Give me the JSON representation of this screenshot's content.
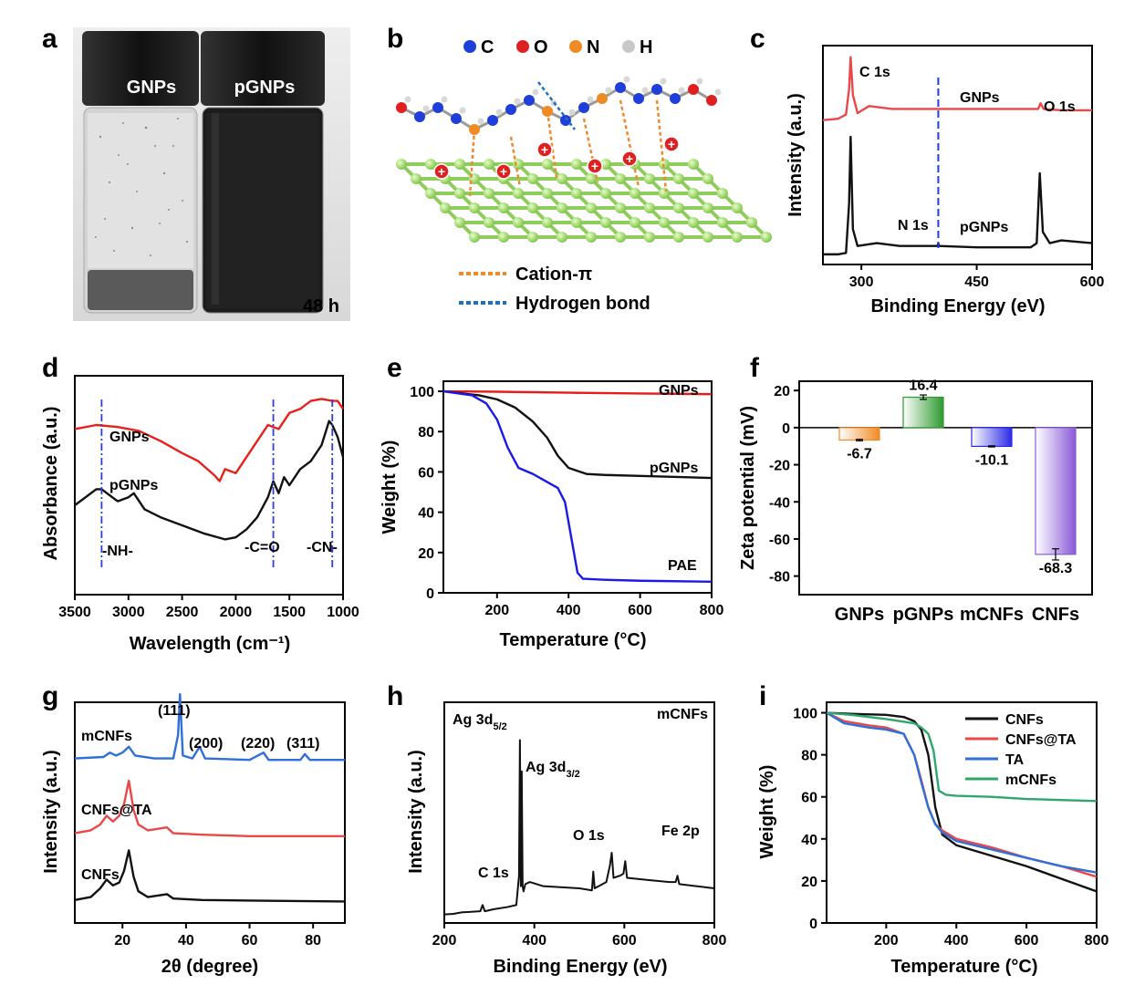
{
  "panels": {
    "a": {
      "label": "a",
      "vials": [
        "GNPs",
        "pGNPs"
      ],
      "time": "48 h"
    },
    "b": {
      "label": "b",
      "atoms": [
        {
          "symbol": "C",
          "color": "#1f3fd8"
        },
        {
          "symbol": "O",
          "color": "#e02020"
        },
        {
          "symbol": "N",
          "color": "#f08a24"
        },
        {
          "symbol": "H",
          "color": "#c8c8c8"
        }
      ],
      "legend": [
        {
          "label": "Cation-π",
          "color": "#ee8a2c"
        },
        {
          "label": "Hydrogen bond",
          "color": "#1f6fbf"
        }
      ]
    }
  },
  "chart_data": [
    {
      "panel": "c",
      "type": "line",
      "xlabel": "Binding Energy (eV)",
      "ylabel": "Intensity (a.u.)",
      "xlim": [
        250,
        600
      ],
      "xticks": [
        "300",
        "450",
        "600"
      ],
      "series": [
        {
          "name": "GNPs",
          "color": "#e8484a",
          "x": [
            250,
            270,
            280,
            284,
            286,
            289,
            295,
            310,
            340,
            400,
            530,
            533,
            537,
            560,
            600
          ],
          "y": [
            100,
            101,
            104,
            122,
            145,
            118,
            105,
            110,
            108,
            108,
            108,
            112,
            108,
            107,
            107
          ]
        },
        {
          "name": "pGNPs",
          "color": "#111111",
          "x": [
            250,
            270,
            280,
            284,
            286,
            289,
            295,
            320,
            350,
            399,
            400,
            401,
            450,
            520,
            528,
            532,
            536,
            545,
            560,
            600
          ],
          "y": [
            4,
            4,
            5,
            40,
            88,
            22,
            10,
            12,
            10,
            10,
            12,
            10,
            9,
            9,
            12,
            62,
            20,
            12,
            14,
            12
          ]
        }
      ],
      "annotations": [
        "C 1s",
        "O 1s",
        "N 1s"
      ],
      "vline_x": 400
    },
    {
      "panel": "d",
      "type": "line",
      "xlabel": "Wavelength (cm⁻¹)",
      "ylabel": "Absorbance (a.u.)",
      "xlim": [
        3500,
        1000
      ],
      "xticks": [
        "3500",
        "3000",
        "2500",
        "2000",
        "1500",
        "1000"
      ],
      "series": [
        {
          "name": "GNPs",
          "color": "#e8201a",
          "x": [
            3500,
            3300,
            3100,
            2900,
            2700,
            2500,
            2350,
            2200,
            2150,
            2100,
            2000,
            1900,
            1800,
            1700,
            1600,
            1500,
            1400,
            1300,
            1200,
            1100,
            1050,
            1000
          ],
          "y": [
            78,
            80,
            79,
            77,
            72,
            66,
            62,
            55,
            52,
            58,
            56,
            64,
            72,
            80,
            78,
            86,
            88,
            92,
            93,
            92,
            92,
            88
          ]
        },
        {
          "name": "pGNPs",
          "color": "#111111",
          "x": [
            3500,
            3300,
            3250,
            3100,
            3000,
            2950,
            2850,
            2700,
            2500,
            2300,
            2100,
            2000,
            1900,
            1800,
            1700,
            1650,
            1600,
            1550,
            1500,
            1400,
            1300,
            1200,
            1130,
            1100,
            1050,
            1000
          ],
          "y": [
            40,
            48,
            48,
            42,
            44,
            46,
            38,
            34,
            30,
            26,
            23,
            24,
            28,
            34,
            44,
            52,
            46,
            54,
            50,
            58,
            62,
            70,
            82,
            80,
            74,
            64
          ]
        }
      ],
      "annotations": [
        "-NH-",
        "-C=O",
        "-CN-"
      ],
      "vlines_x": [
        3250,
        1650,
        1100
      ]
    },
    {
      "panel": "e",
      "type": "line",
      "xlabel": "Temperature (°C)",
      "ylabel": "Weight (%)",
      "xlim": [
        50,
        800
      ],
      "ylim": [
        0,
        105
      ],
      "xticks": [
        "200",
        "400",
        "600",
        "800"
      ],
      "yticks": [
        "0",
        "20",
        "40",
        "60",
        "80",
        "100"
      ],
      "series": [
        {
          "name": "GNPs",
          "color": "#e81a1a",
          "x": [
            50,
            200,
            400,
            600,
            800
          ],
          "y": [
            100,
            99.8,
            99.3,
            98.9,
            98.6
          ]
        },
        {
          "name": "pGNPs",
          "color": "#111111",
          "x": [
            50,
            150,
            200,
            250,
            300,
            340,
            370,
            400,
            450,
            500,
            600,
            700,
            800
          ],
          "y": [
            100,
            98,
            96,
            92,
            85,
            77,
            68,
            62,
            59,
            58.5,
            58,
            57.5,
            57
          ]
        },
        {
          "name": "PAE",
          "color": "#1a1ae8",
          "x": [
            50,
            130,
            170,
            200,
            230,
            260,
            300,
            340,
            370,
            390,
            410,
            425,
            440,
            500,
            600,
            800
          ],
          "y": [
            100,
            98,
            94,
            86,
            72,
            62,
            59,
            55,
            52,
            45,
            25,
            10,
            7,
            6.5,
            6,
            5.5
          ]
        }
      ]
    },
    {
      "panel": "f",
      "type": "bar",
      "ylabel": "Zeta potential (mV)",
      "ylim": [
        -90,
        25
      ],
      "yticks": [
        "20",
        "0",
        "-20",
        "-40",
        "-60",
        "-80"
      ],
      "categories": [
        "GNPs",
        "pGNPs",
        "mCNFs",
        "CNFs"
      ],
      "values": [
        -6.7,
        16.4,
        -10.1,
        -68.3
      ],
      "value_labels": [
        "-6.7",
        "16.4",
        "-10.1",
        "-68.3"
      ],
      "errors": [
        0.4,
        1.2,
        0.3,
        3.0
      ],
      "colors": [
        "#f08a24",
        "#2e9a2e",
        "#2a2ae6",
        "#8a5ad8"
      ]
    },
    {
      "panel": "g",
      "type": "line",
      "xlabel": "2θ (degree)",
      "ylabel": "Intensity (a.u.)",
      "xlim": [
        5,
        90
      ],
      "xticks": [
        "20",
        "40",
        "60",
        "80"
      ],
      "series": [
        {
          "name": "mCNFs",
          "color": "#2e6fd8",
          "x": [
            5,
            14,
            16,
            18,
            20,
            22,
            24,
            30,
            36,
            37.5,
            38.1,
            39,
            42,
            44.3,
            46,
            60,
            64.4,
            66,
            76,
            77.4,
            79,
            90
          ],
          "y": [
            2,
            2.5,
            4,
            3,
            4,
            6,
            3,
            2,
            2,
            10,
            24,
            3,
            2,
            6,
            2,
            1.5,
            4,
            1.5,
            1.5,
            3.5,
            1.5,
            1.5
          ]
        },
        {
          "name": "CNFs@TA",
          "color": "#e84848",
          "x": [
            5,
            10,
            13,
            15,
            17,
            19,
            20.5,
            22,
            23.5,
            25,
            28,
            34,
            36,
            45,
            60,
            90
          ],
          "y": [
            2,
            3,
            5,
            8,
            6,
            8,
            12,
            20,
            10,
            5,
            3,
            4,
            2,
            1.5,
            1,
            1
          ]
        },
        {
          "name": "CNFs",
          "color": "#111111",
          "x": [
            5,
            10,
            13,
            15,
            17,
            19,
            20.5,
            22,
            23.5,
            25,
            28,
            34,
            36,
            45,
            60,
            90
          ],
          "y": [
            1,
            2,
            5,
            8,
            6,
            7,
            11,
            18,
            9,
            4,
            2,
            3,
            1.5,
            1,
            0.8,
            0.5
          ]
        }
      ],
      "annotations": [
        "(111)",
        "(200)",
        "(220)",
        "(311)"
      ]
    },
    {
      "panel": "h",
      "type": "line",
      "xlabel": "Binding Energy (eV)",
      "ylabel": "Intensity (a.u.)",
      "xlim": [
        200,
        800
      ],
      "xticks": [
        "200",
        "400",
        "600",
        "800"
      ],
      "series": [
        {
          "name": "mCNFs",
          "color": "#111111",
          "x": [
            200,
            220,
            240,
            260,
            280,
            285,
            290,
            310,
            340,
            360,
            366,
            368,
            370,
            372,
            374,
            376,
            380,
            390,
            420,
            500,
            528,
            531,
            534,
            560,
            568,
            572,
            576,
            590,
            598,
            602,
            606,
            650,
            700,
            714,
            718,
            722,
            760,
            800
          ],
          "y": [
            3,
            3.5,
            5,
            5.5,
            6,
            12,
            6,
            8,
            10,
            12,
            40,
            170,
            30,
            140,
            30,
            25,
            32,
            34,
            30,
            28,
            26,
            44,
            28,
            34,
            50,
            62,
            38,
            40,
            42,
            54,
            38,
            36,
            34,
            34,
            40,
            32,
            30,
            28
          ]
        }
      ],
      "annotations": [
        "Ag 3d5/2",
        "Ag 3d3/2",
        "O 1s",
        "C 1s",
        "Fe 2p"
      ]
    },
    {
      "panel": "i",
      "type": "line",
      "xlabel": "Temperature (°C)",
      "ylabel": "Weight (%)",
      "xlim": [
        30,
        800
      ],
      "ylim": [
        0,
        105
      ],
      "xticks": [
        "200",
        "400",
        "600",
        "800"
      ],
      "yticks": [
        "0",
        "20",
        "40",
        "60",
        "80",
        "100"
      ],
      "series": [
        {
          "name": "CNFs",
          "color": "#111111",
          "x": [
            30,
            100,
            200,
            250,
            280,
            300,
            320,
            340,
            360,
            400,
            500,
            600,
            700,
            800
          ],
          "y": [
            100,
            99.5,
            99,
            98,
            96,
            92,
            80,
            55,
            42,
            37,
            32,
            27,
            21,
            15
          ]
        },
        {
          "name": "CNFs@TA",
          "color": "#e84848",
          "x": [
            30,
            80,
            150,
            200,
            250,
            280,
            300,
            320,
            340,
            360,
            400,
            500,
            600,
            700,
            800
          ],
          "y": [
            100,
            96,
            94,
            93,
            90,
            80,
            68,
            55,
            47,
            44,
            40,
            36,
            31,
            27,
            22
          ]
        },
        {
          "name": "TA",
          "color": "#2e6fd8",
          "x": [
            30,
            80,
            150,
            200,
            250,
            280,
            300,
            320,
            340,
            360,
            400,
            500,
            600,
            700,
            800
          ],
          "y": [
            100,
            95,
            93,
            92,
            90,
            80,
            67,
            55,
            47,
            43,
            39,
            35,
            31,
            27,
            24
          ]
        },
        {
          "name": "mCNFs",
          "color": "#2ea86a",
          "x": [
            30,
            100,
            200,
            280,
            300,
            320,
            335,
            350,
            370,
            400,
            500,
            600,
            700,
            800
          ],
          "y": [
            100,
            99,
            97,
            95,
            93,
            90,
            82,
            63,
            61,
            60.5,
            60,
            59,
            58.5,
            58
          ]
        }
      ]
    }
  ]
}
